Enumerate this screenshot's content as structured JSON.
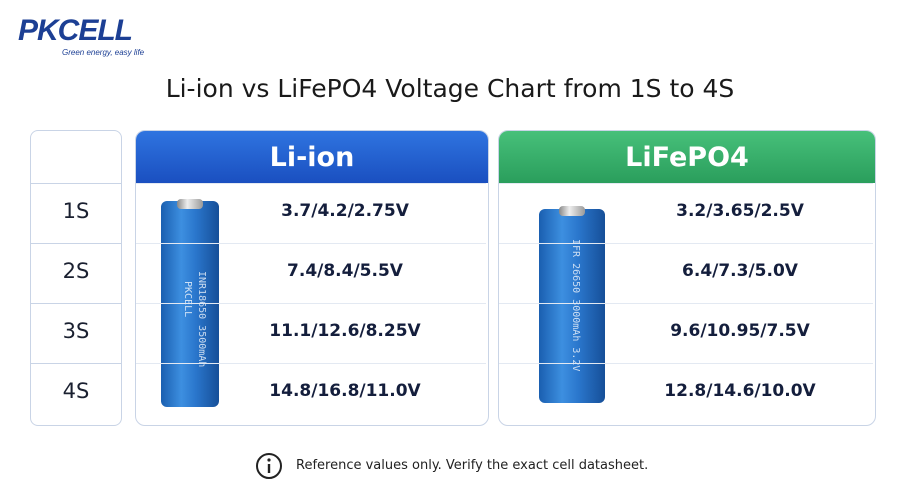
{
  "header": {
    "logo": "PKCELL",
    "tagline": "Green energy, easy life"
  },
  "title": "Li-ion vs LiFePO4 Voltage Chart from 1S to 4S",
  "table": {
    "columns": [
      "Li-ion",
      "LiFePO4"
    ],
    "rows": [
      [
        "1S",
        "3.7/4.2/2.75V",
        "3.2/3.65/2.5V"
      ],
      [
        "2S",
        "7.4/8.4/5.5V",
        "6.4/7.3/5.0V"
      ],
      [
        "3S",
        "11.1/12.6/8.25V",
        "9.6/10.95/7.5V"
      ],
      [
        "4S",
        "14.8/16.8/11.0V",
        "12.8/14.6/10.0V"
      ]
    ]
  },
  "batteries": [
    {
      "brand": "PKCELL",
      "model": "INR18650 3500mAh"
    },
    {
      "model": "IFR 26650 3000mAh 3.2V"
    }
  ],
  "footnote": "Reference values only. Verify the exact cell datasheet."
}
